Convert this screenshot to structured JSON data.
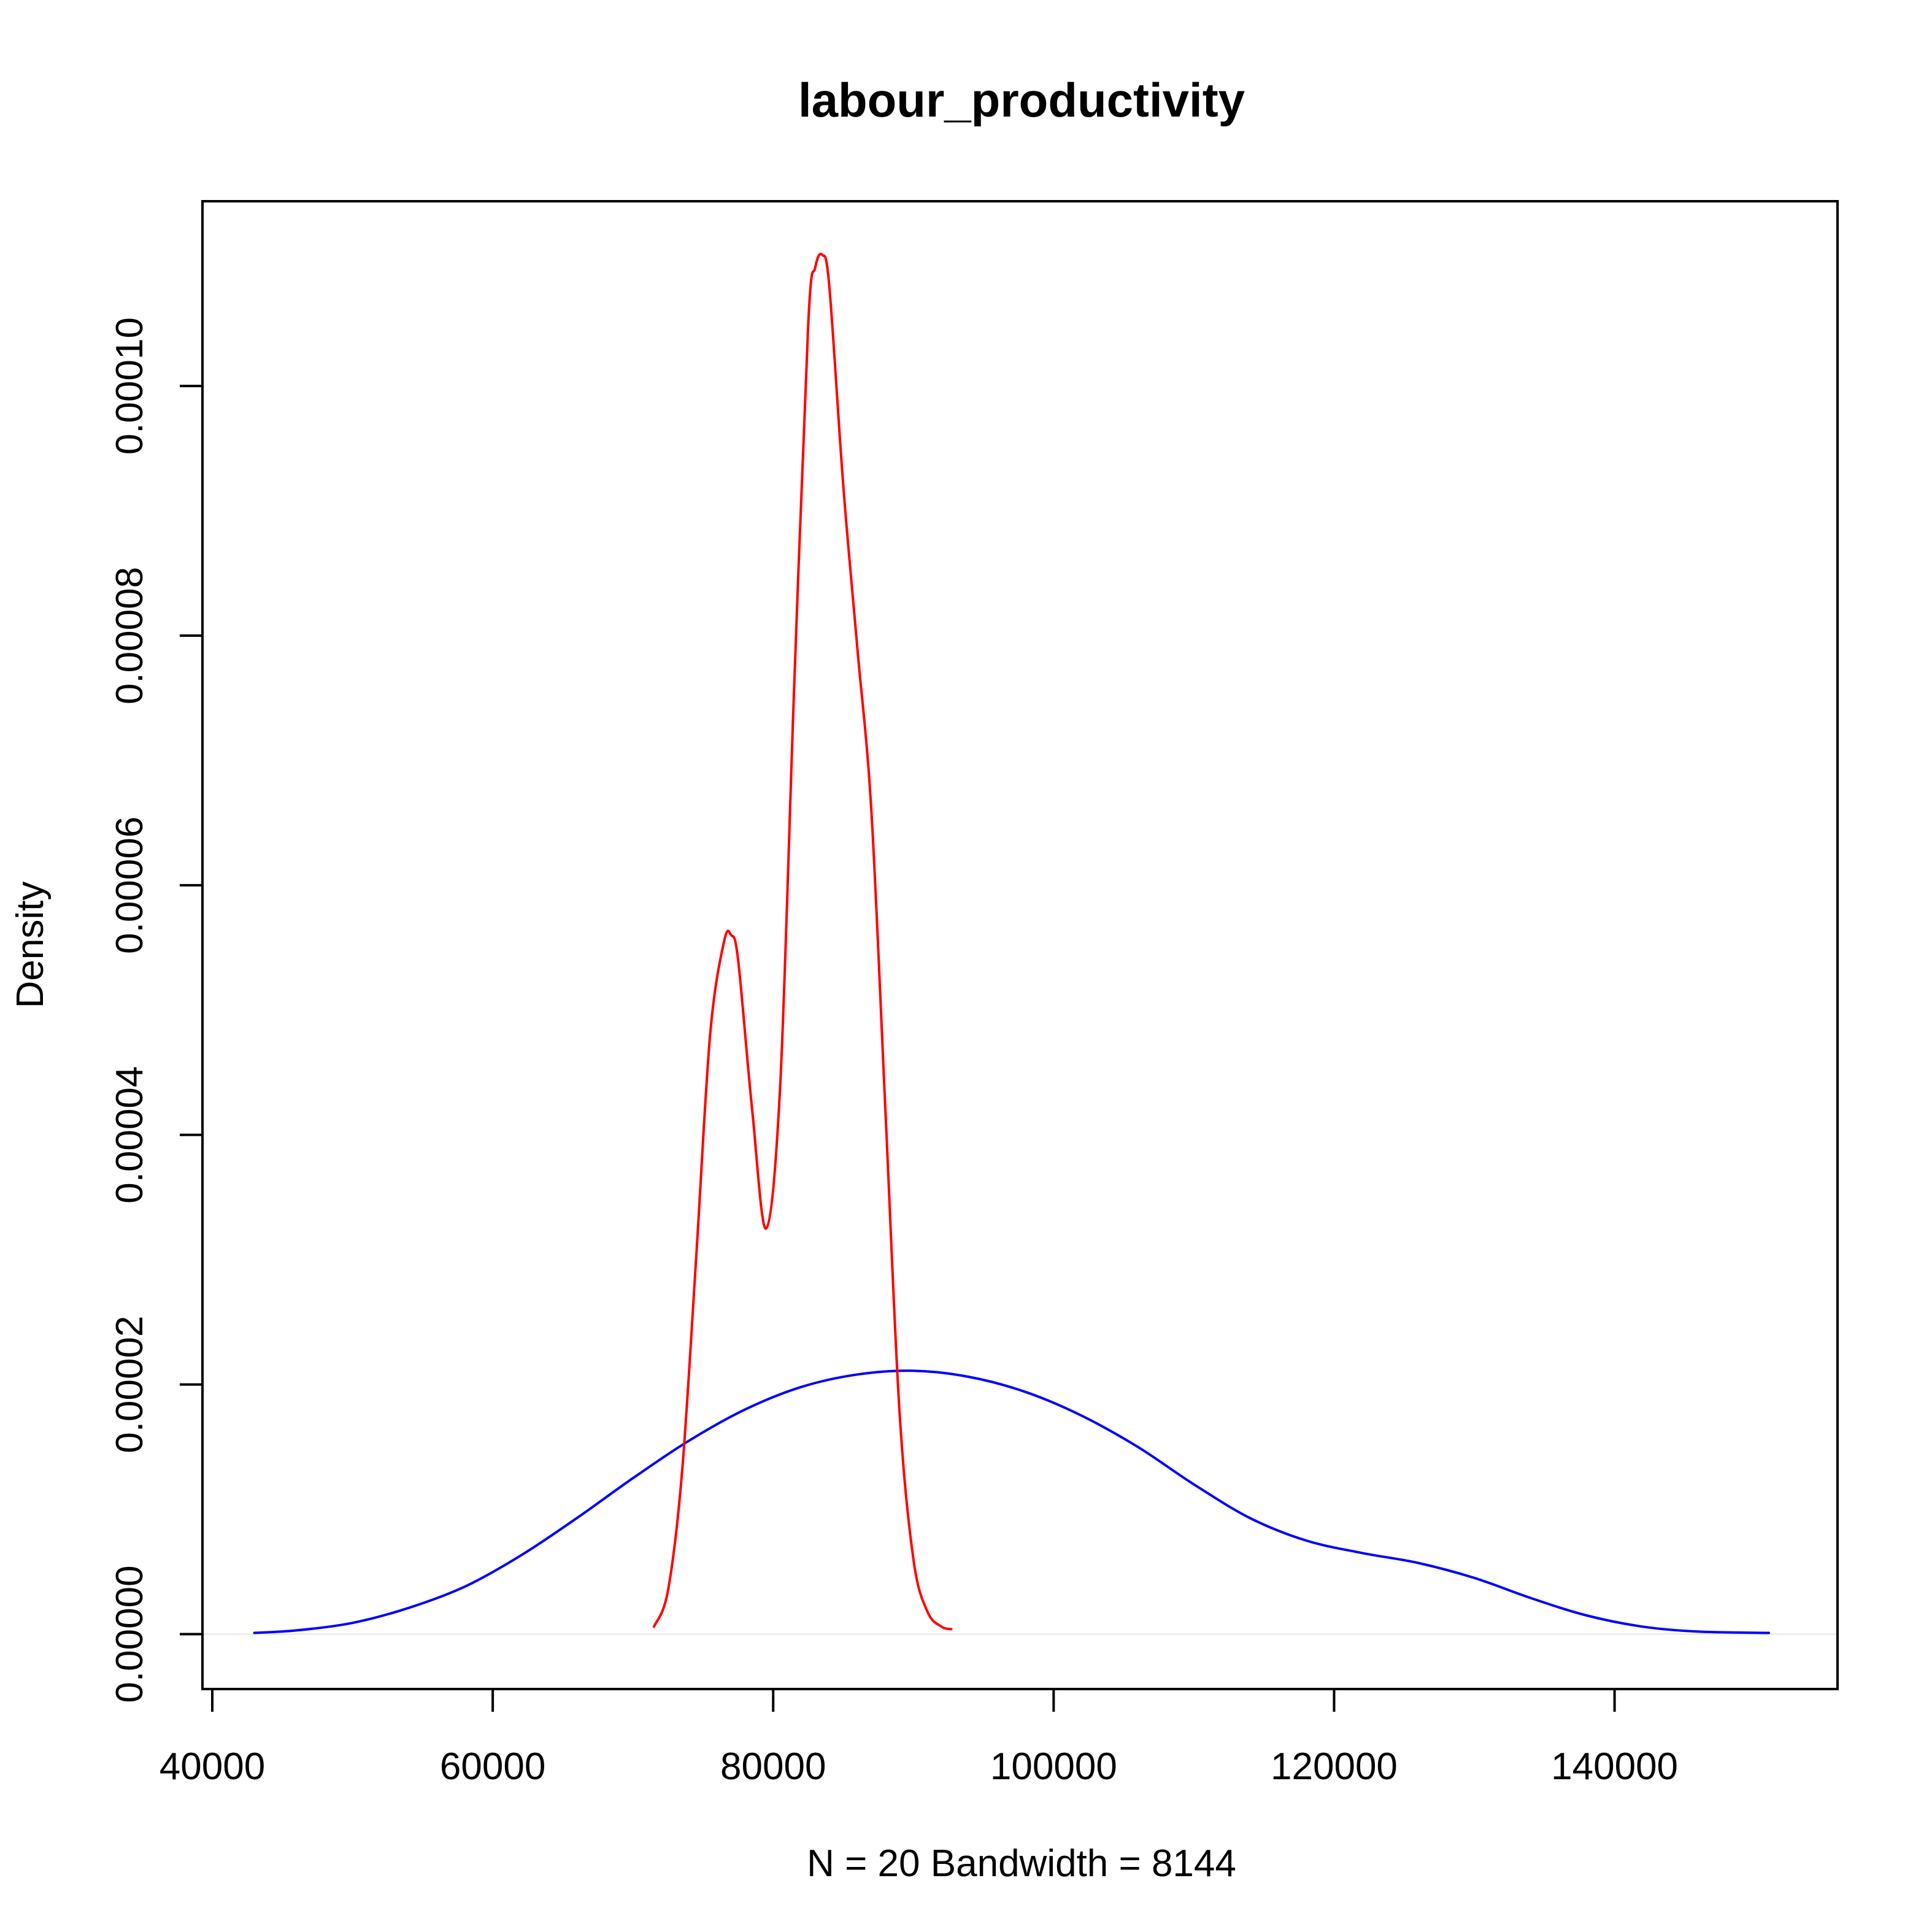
{
  "chart_data": {
    "type": "line",
    "title": "labour_productivity",
    "xlabel": "N = 20   Bandwidth = 8144",
    "ylabel": "Density",
    "xlim": [
      39300,
      155900
    ],
    "ylim": [
      -4.4e-06,
      0.0001148
    ],
    "x_ticks": [
      40000,
      60000,
      80000,
      100000,
      120000,
      140000
    ],
    "x_tick_labels": [
      "40000",
      "60000",
      "80000",
      "100000",
      "120000",
      "140000"
    ],
    "y_ticks": [
      0,
      2e-05,
      4e-05,
      6e-05,
      8e-05,
      0.0001
    ],
    "y_tick_labels": [
      "0.00000",
      "0.00002",
      "0.00004",
      "0.00006",
      "0.00008",
      "0.00010"
    ],
    "grid": false,
    "zero_line": true,
    "series": [
      {
        "color": "#0000ff",
        "x": [
          43000,
          46000,
          50000,
          54000,
          58000,
          62000,
          66000,
          70000,
          74000,
          78000,
          82000,
          86000,
          90000,
          94000,
          98000,
          102000,
          106000,
          110000,
          114000,
          118000,
          122000,
          126000,
          130000,
          134000,
          138000,
          142000,
          146000,
          151000
        ],
        "y": [
          1e-07,
          3e-07,
          9e-07,
          2.1e-06,
          3.8e-06,
          6.3e-06,
          9.3e-06,
          1.25e-05,
          1.55e-05,
          1.8e-05,
          1.98e-05,
          2.08e-05,
          2.11e-05,
          2.06e-05,
          1.94e-05,
          1.75e-05,
          1.5e-05,
          1.2e-05,
          9.3e-06,
          7.5e-06,
          6.5e-06,
          5.7e-06,
          4.5e-06,
          2.9e-06,
          1.5e-06,
          6e-07,
          2e-07,
          1e-07
        ]
      },
      {
        "color": "#ff0000",
        "x": [
          71500,
          72500,
          73500,
          74500,
          75500,
          76500,
          77000,
          77500,
          78500,
          79500,
          80500,
          81500,
          82500,
          83000,
          83500,
          84000,
          85000,
          86000,
          87000,
          88000,
          89000,
          90000,
          91000,
          92000,
          92700
        ],
        "y": [
          6e-07,
          3.5e-06,
          1.3e-05,
          3e-05,
          4.8e-05,
          5.55e-05,
          5.6e-05,
          5.4e-05,
          4.2e-05,
          3.25e-05,
          4.4e-05,
          7.6e-05,
          0.000105,
          0.0001095,
          0.0001105,
          0.000108,
          9.2e-05,
          7.9e-05,
          6.6e-05,
          4.2e-05,
          1.8e-05,
          6e-06,
          1.8e-06,
          6e-07,
          4e-07
        ]
      }
    ]
  }
}
